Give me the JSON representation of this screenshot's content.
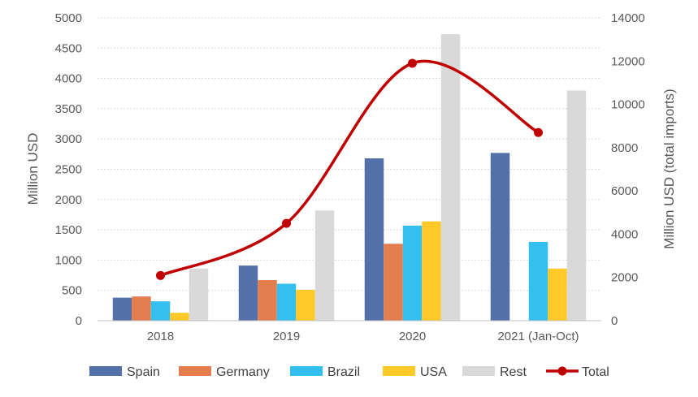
{
  "chart_data": {
    "type": "bar",
    "categories": [
      "2018",
      "2019",
      "2020",
      "2021 (Jan-Oct)"
    ],
    "series": [
      {
        "name": "Spain",
        "values": [
          380,
          910,
          2680,
          2770
        ],
        "color": "#5470a8"
      },
      {
        "name": "Germany",
        "values": [
          400,
          670,
          1270,
          0
        ],
        "color": "#e57e4e"
      },
      {
        "name": "Brazil",
        "values": [
          320,
          610,
          1570,
          1300
        ],
        "color": "#33bff0"
      },
      {
        "name": "USA",
        "values": [
          130,
          510,
          1640,
          860
        ],
        "color": "#ffc929"
      },
      {
        "name": "Rest",
        "values": [
          860,
          1820,
          4730,
          3800
        ],
        "color": "#d9d9d9"
      }
    ],
    "line_series": {
      "name": "Total",
      "values": [
        2090,
        4500,
        11900,
        8700
      ],
      "color": "#c00000",
      "axis": "secondary",
      "smooth": true
    },
    "ylabel": "Million USD",
    "ylabel_secondary": "Million USD (total imports)",
    "ylim": [
      0,
      5000
    ],
    "ylim_secondary": [
      0,
      14000
    ],
    "yticks": [
      "0",
      "500",
      "1000",
      "1500",
      "2000",
      "2500",
      "3000",
      "3500",
      "4000",
      "4500",
      "5000"
    ],
    "yticks_secondary": [
      "0",
      "2000",
      "4000",
      "6000",
      "8000",
      "10000",
      "12000",
      "14000"
    ],
    "grid": true,
    "legend_position": "bottom"
  }
}
